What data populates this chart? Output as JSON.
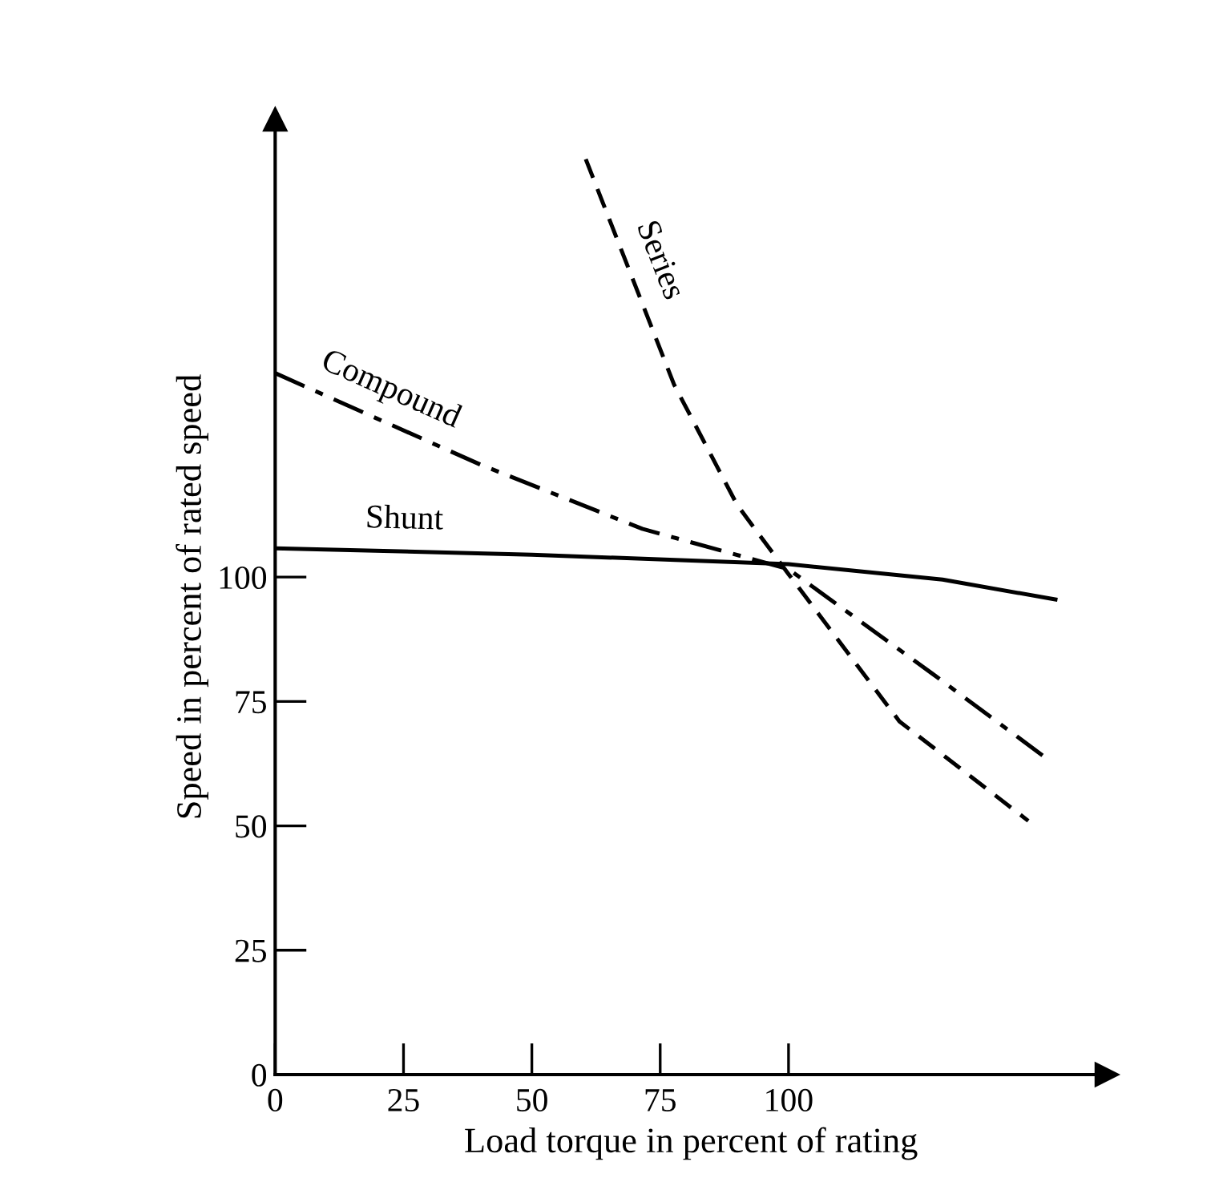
{
  "chart_data": {
    "type": "line",
    "xlabel": "Load torque in percent of rating",
    "ylabel": "Speed in percent of rated speed",
    "xlim": [
      0,
      162
    ],
    "ylim": [
      0,
      192
    ],
    "xticks": [
      0,
      25,
      50,
      75,
      100
    ],
    "yticks": [
      0,
      25,
      50,
      75,
      100
    ],
    "grid": false,
    "legend": false,
    "marker": "none",
    "series": [
      {
        "name": "Series",
        "color": "#000000",
        "line_style": "dashed",
        "x": [
          60.5,
          77.7,
          90,
          100,
          121.6,
          146.7
        ],
        "values": [
          184,
          138.7,
          114.5,
          100.6,
          71,
          51
        ]
      },
      {
        "name": "Compound",
        "color": "#000000",
        "line_style": "dashdot",
        "x": [
          0,
          40,
          71.5,
          100,
          128,
          151
        ],
        "values": [
          141,
          122.6,
          109.7,
          101.6,
          80.6,
          63
        ]
      },
      {
        "name": "Shunt",
        "color": "#000000",
        "line_style": "solid",
        "x": [
          0,
          50,
          100,
          130,
          152
        ],
        "values": [
          105.8,
          104.5,
          102.6,
          99.5,
          95.5
        ]
      }
    ]
  }
}
